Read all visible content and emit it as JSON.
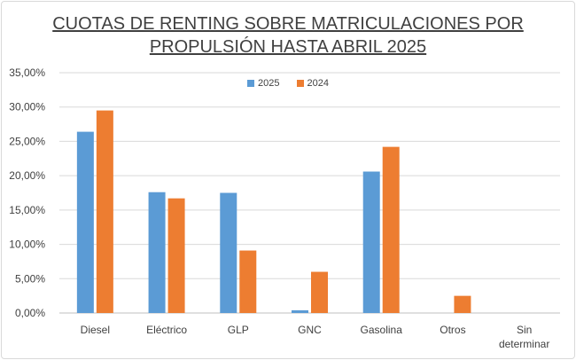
{
  "chart_data": {
    "type": "bar",
    "title_line1": "CUOTAS DE RENTING SOBRE MATRICULACIONES POR",
    "title_line2": "PROPULSIÓN HASTA ABRIL 2025",
    "categories": [
      "Diesel",
      "Eléctrico",
      "GLP",
      "GNC",
      "Gasolina",
      "Otros",
      "Sin determinar"
    ],
    "category_lines": [
      [
        "Diesel"
      ],
      [
        "Eléctrico"
      ],
      [
        "GLP"
      ],
      [
        "GNC"
      ],
      [
        "Gasolina"
      ],
      [
        "Otros"
      ],
      [
        "Sin",
        "determinar"
      ]
    ],
    "series": [
      {
        "name": "2025",
        "color": "#5b9bd5",
        "values": [
          26.4,
          17.6,
          17.5,
          0.4,
          20.6,
          0.0,
          0.0
        ]
      },
      {
        "name": "2024",
        "color": "#ed7d31",
        "values": [
          29.5,
          16.7,
          9.1,
          6.0,
          24.2,
          2.5,
          0.0
        ]
      }
    ],
    "y_ticks": [
      "0,00%",
      "5,00%",
      "10,00%",
      "15,00%",
      "20,00%",
      "25,00%",
      "30,00%",
      "35,00%"
    ],
    "ylim": [
      0,
      35
    ],
    "grid": true,
    "legend_position": "top-center",
    "xlabel": "",
    "ylabel": ""
  }
}
